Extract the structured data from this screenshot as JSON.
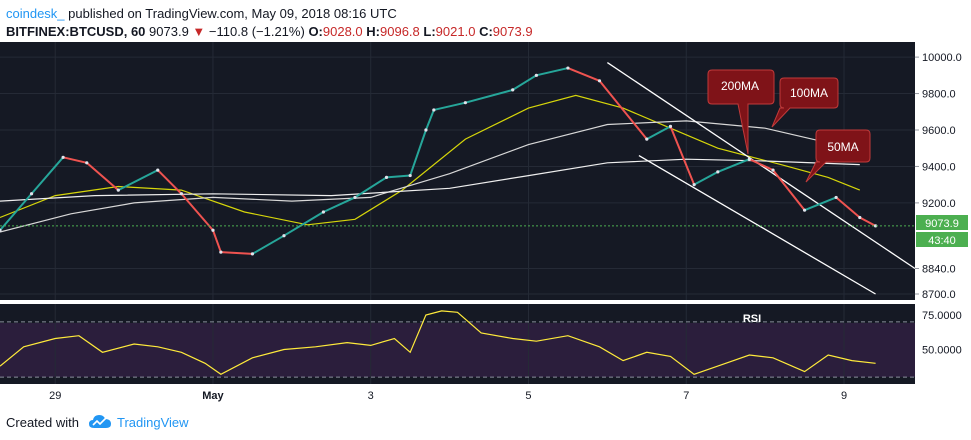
{
  "header": {
    "user": "coindesk_",
    "published": "published on TradingView.com, May 09, 2018 08:16 UTC",
    "symbol": "BITFINEX:BTCUSD, 60",
    "last": "9073.9",
    "change_arrow": "▼",
    "change": "−110.8 (−1.21%)",
    "o_label": "O:",
    "o_value": "9028.0",
    "h_label": "H:",
    "h_value": "9096.8",
    "l_label": "L:",
    "l_value": "9021.0",
    "c_label": "C:",
    "c_value": "9073.9"
  },
  "footer": {
    "created": "Created with",
    "brand": "TradingView"
  },
  "chart_data": {
    "type": "line",
    "title": "",
    "price_axis": {
      "range": [
        8700,
        10050
      ],
      "ticks": [
        10000,
        9800,
        9600,
        9400,
        9200,
        8840,
        8700
      ],
      "tick_labels": [
        "10000.0",
        "9800.0",
        "9600.0",
        "9400.0",
        "9200.0",
        "8840.0",
        "8700.0"
      ],
      "last_price_label": "9073.9",
      "countdown_label": "43:40"
    },
    "rsi_axis": {
      "range": [
        25,
        83
      ],
      "ticks": [
        75,
        50
      ],
      "tick_labels": [
        "75.0000",
        "50.0000"
      ],
      "upper_band": 70,
      "lower_band": 30,
      "label": "RSI"
    },
    "x_axis": {
      "labels": [
        "29",
        "May",
        "3",
        "5",
        "7",
        "9"
      ],
      "label_days": [
        1,
        3,
        5,
        7,
        9,
        11
      ],
      "day_range": [
        0.3,
        11.9
      ]
    },
    "price_series": [
      {
        "d": 0.3,
        "v": 9050
      },
      {
        "d": 0.7,
        "v": 9250
      },
      {
        "d": 1.1,
        "v": 9450
      },
      {
        "d": 1.4,
        "v": 9420
      },
      {
        "d": 1.8,
        "v": 9270
      },
      {
        "d": 2.3,
        "v": 9380
      },
      {
        "d": 2.6,
        "v": 9250
      },
      {
        "d": 3.0,
        "v": 9050
      },
      {
        "d": 3.1,
        "v": 8930
      },
      {
        "d": 3.5,
        "v": 8920
      },
      {
        "d": 3.9,
        "v": 9020
      },
      {
        "d": 4.4,
        "v": 9150
      },
      {
        "d": 4.8,
        "v": 9230
      },
      {
        "d": 5.2,
        "v": 9340
      },
      {
        "d": 5.5,
        "v": 9350
      },
      {
        "d": 5.7,
        "v": 9600
      },
      {
        "d": 5.8,
        "v": 9710
      },
      {
        "d": 6.2,
        "v": 9750
      },
      {
        "d": 6.8,
        "v": 9820
      },
      {
        "d": 7.1,
        "v": 9900
      },
      {
        "d": 7.5,
        "v": 9940
      },
      {
        "d": 7.9,
        "v": 9870
      },
      {
        "d": 8.5,
        "v": 9550
      },
      {
        "d": 8.8,
        "v": 9620
      },
      {
        "d": 9.1,
        "v": 9300
      },
      {
        "d": 9.4,
        "v": 9370
      },
      {
        "d": 9.8,
        "v": 9440
      },
      {
        "d": 10.1,
        "v": 9380
      },
      {
        "d": 10.5,
        "v": 9160
      },
      {
        "d": 10.9,
        "v": 9230
      },
      {
        "d": 11.2,
        "v": 9120
      },
      {
        "d": 11.4,
        "v": 9073.9
      }
    ],
    "ma_series": [
      {
        "name": "50MA",
        "color": "#d6d60a",
        "points": [
          {
            "d": 0.3,
            "v": 9120
          },
          {
            "d": 1.0,
            "v": 9240
          },
          {
            "d": 1.8,
            "v": 9290
          },
          {
            "d": 2.6,
            "v": 9270
          },
          {
            "d": 3.4,
            "v": 9150
          },
          {
            "d": 4.2,
            "v": 9080
          },
          {
            "d": 4.8,
            "v": 9110
          },
          {
            "d": 5.4,
            "v": 9270
          },
          {
            "d": 6.2,
            "v": 9550
          },
          {
            "d": 7.0,
            "v": 9720
          },
          {
            "d": 7.6,
            "v": 9790
          },
          {
            "d": 8.2,
            "v": 9720
          },
          {
            "d": 8.8,
            "v": 9610
          },
          {
            "d": 9.4,
            "v": 9500
          },
          {
            "d": 10.2,
            "v": 9410
          },
          {
            "d": 10.8,
            "v": 9340
          },
          {
            "d": 11.2,
            "v": 9270
          }
        ]
      },
      {
        "name": "100MA",
        "color": "#d8d8d8",
        "points": [
          {
            "d": 0.3,
            "v": 9040
          },
          {
            "d": 1.2,
            "v": 9140
          },
          {
            "d": 2.0,
            "v": 9200
          },
          {
            "d": 3.0,
            "v": 9230
          },
          {
            "d": 4.0,
            "v": 9210
          },
          {
            "d": 5.0,
            "v": 9230
          },
          {
            "d": 6.0,
            "v": 9360
          },
          {
            "d": 7.0,
            "v": 9520
          },
          {
            "d": 8.0,
            "v": 9630
          },
          {
            "d": 9.0,
            "v": 9650
          },
          {
            "d": 10.0,
            "v": 9610
          },
          {
            "d": 10.8,
            "v": 9530
          },
          {
            "d": 11.2,
            "v": 9480
          }
        ]
      },
      {
        "name": "200MA",
        "color": "#eeeeee",
        "points": [
          {
            "d": 0.3,
            "v": 9210
          },
          {
            "d": 1.5,
            "v": 9240
          },
          {
            "d": 3.0,
            "v": 9250
          },
          {
            "d": 4.5,
            "v": 9240
          },
          {
            "d": 6.0,
            "v": 9280
          },
          {
            "d": 7.0,
            "v": 9350
          },
          {
            "d": 8.0,
            "v": 9420
          },
          {
            "d": 9.0,
            "v": 9440
          },
          {
            "d": 10.0,
            "v": 9430
          },
          {
            "d": 11.2,
            "v": 9410
          }
        ]
      }
    ],
    "channel_lines": [
      {
        "from": {
          "d": 8.0,
          "v": 9970
        },
        "to": {
          "d": 11.9,
          "v": 8840
        }
      },
      {
        "from": {
          "d": 8.4,
          "v": 9460
        },
        "to": {
          "d": 11.4,
          "v": 8700
        }
      }
    ],
    "annotations": [
      {
        "text": "200MA",
        "color": "#7f1318"
      },
      {
        "text": "100MA",
        "color": "#7f1318"
      },
      {
        "text": "50MA",
        "color": "#7f1318"
      }
    ],
    "rsi_series": [
      {
        "d": 0.3,
        "v": 38
      },
      {
        "d": 0.6,
        "v": 52
      },
      {
        "d": 1.0,
        "v": 58
      },
      {
        "d": 1.3,
        "v": 60
      },
      {
        "d": 1.6,
        "v": 48
      },
      {
        "d": 2.0,
        "v": 54
      },
      {
        "d": 2.3,
        "v": 52
      },
      {
        "d": 2.6,
        "v": 48
      },
      {
        "d": 2.9,
        "v": 40
      },
      {
        "d": 3.1,
        "v": 32
      },
      {
        "d": 3.5,
        "v": 44
      },
      {
        "d": 3.9,
        "v": 50
      },
      {
        "d": 4.3,
        "v": 52
      },
      {
        "d": 4.7,
        "v": 55
      },
      {
        "d": 5.0,
        "v": 53
      },
      {
        "d": 5.3,
        "v": 58
      },
      {
        "d": 5.5,
        "v": 48
      },
      {
        "d": 5.7,
        "v": 75
      },
      {
        "d": 5.9,
        "v": 78
      },
      {
        "d": 6.1,
        "v": 77
      },
      {
        "d": 6.4,
        "v": 62
      },
      {
        "d": 6.8,
        "v": 58
      },
      {
        "d": 7.1,
        "v": 56
      },
      {
        "d": 7.5,
        "v": 60
      },
      {
        "d": 7.9,
        "v": 52
      },
      {
        "d": 8.2,
        "v": 42
      },
      {
        "d": 8.5,
        "v": 48
      },
      {
        "d": 8.8,
        "v": 45
      },
      {
        "d": 9.1,
        "v": 32
      },
      {
        "d": 9.5,
        "v": 40
      },
      {
        "d": 9.8,
        "v": 46
      },
      {
        "d": 10.1,
        "v": 44
      },
      {
        "d": 10.5,
        "v": 34
      },
      {
        "d": 10.8,
        "v": 46
      },
      {
        "d": 11.1,
        "v": 42
      },
      {
        "d": 11.4,
        "v": 40
      }
    ]
  }
}
